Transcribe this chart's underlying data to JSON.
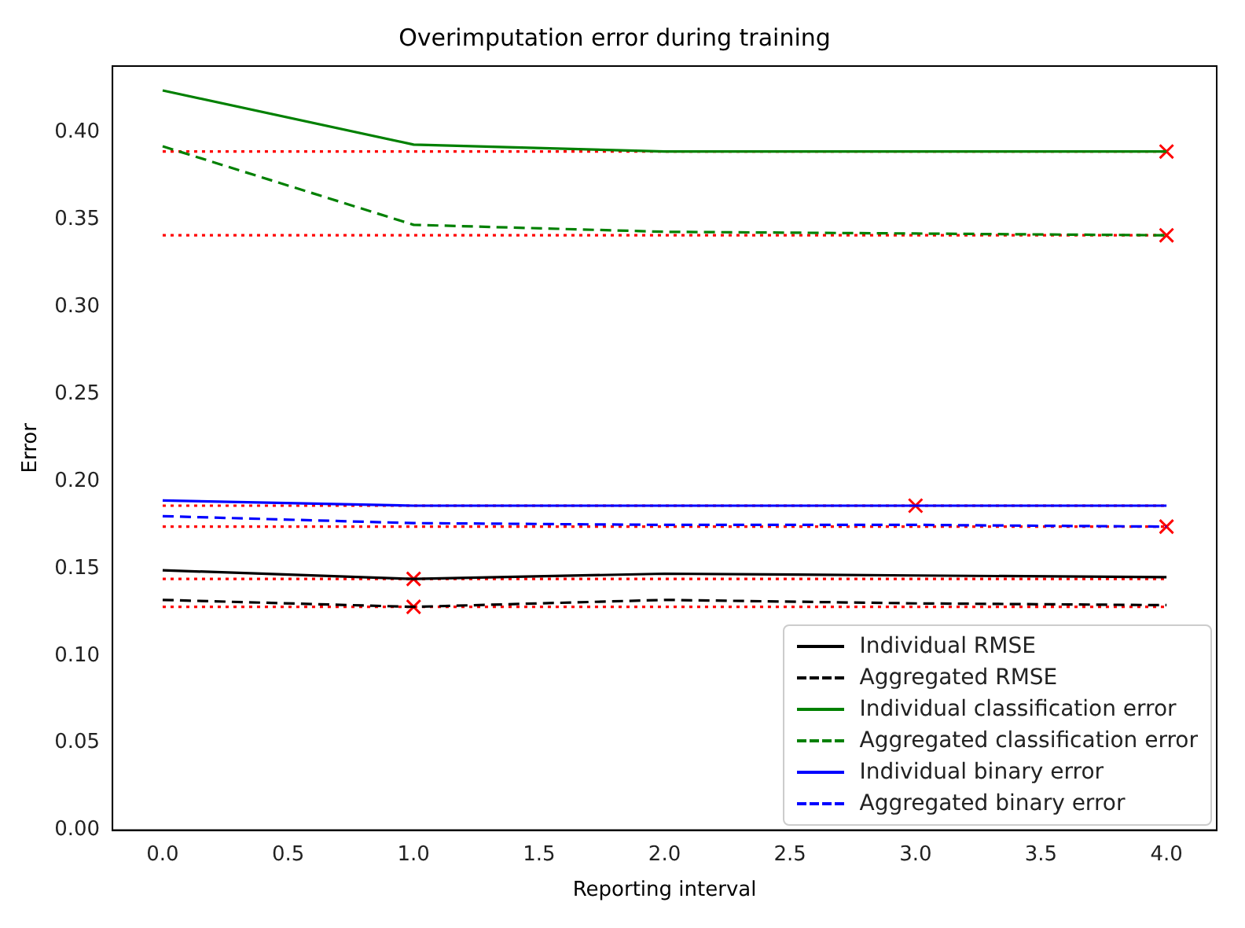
{
  "chart_data": {
    "type": "line",
    "title": "Overimputation error during training",
    "xlabel": "Reporting interval",
    "ylabel": "Error",
    "x": [
      0,
      1,
      2,
      3,
      4
    ],
    "series": [
      {
        "name": "Individual RMSE",
        "color": "#000000",
        "line_style": "solid",
        "values": [
          0.149,
          0.144,
          0.147,
          0.146,
          0.145
        ]
      },
      {
        "name": "Aggregated RMSE",
        "color": "#000000",
        "line_style": "dashed",
        "values": [
          0.132,
          0.128,
          0.132,
          0.13,
          0.129
        ]
      },
      {
        "name": "Individual classification error",
        "color": "#008000",
        "line_style": "solid",
        "values": [
          0.424,
          0.393,
          0.389,
          0.389,
          0.389
        ]
      },
      {
        "name": "Aggregated classification error",
        "color": "#008000",
        "line_style": "dashed",
        "values": [
          0.392,
          0.347,
          0.343,
          0.342,
          0.341
        ]
      },
      {
        "name": "Individual binary error",
        "color": "#0000ff",
        "line_style": "solid",
        "values": [
          0.189,
          0.186,
          0.186,
          0.186,
          0.186
        ]
      },
      {
        "name": "Aggregated binary error",
        "color": "#0000ff",
        "line_style": "dashed",
        "values": [
          0.18,
          0.176,
          0.175,
          0.175,
          0.174
        ]
      },
      {
        "type": "scatter",
        "color": "#ff0000",
        "marker": "cross",
        "x": [
          1,
          1,
          4,
          4,
          3,
          4
        ],
        "values": [
          0.144,
          0.128,
          0.389,
          0.341,
          0.186,
          0.174
        ]
      }
    ],
    "ref_lines": [
      {
        "axis": "y",
        "value": 0.144,
        "color": "#ff0000",
        "line_style": "dotted"
      },
      {
        "axis": "y",
        "value": 0.128,
        "color": "#ff0000",
        "line_style": "dotted"
      },
      {
        "axis": "y",
        "value": 0.389,
        "color": "#ff0000",
        "line_style": "dotted"
      },
      {
        "axis": "y",
        "value": 0.341,
        "color": "#ff0000",
        "line_style": "dotted"
      },
      {
        "axis": "y",
        "value": 0.186,
        "color": "#ff0000",
        "line_style": "dotted"
      },
      {
        "axis": "y",
        "value": 0.174,
        "color": "#ff0000",
        "line_style": "dotted"
      }
    ],
    "xlim": [
      -0.2,
      4.2
    ],
    "ylim": [
      0,
      0.438
    ],
    "xticks": [
      {
        "value": 0,
        "label": "0.0"
      },
      0.5,
      {
        "value": 1,
        "label": "1.0"
      },
      1.5,
      {
        "value": 2,
        "label": "2.0"
      },
      2.5,
      {
        "value": 3,
        "label": "3.0"
      },
      3.5,
      {
        "value": 4,
        "label": "4.0"
      }
    ],
    "yticks": [
      {
        "value": 0,
        "label": "0.00"
      },
      {
        "value": 0.05,
        "label": "0.05"
      },
      {
        "value": 0.1,
        "label": "0.10"
      },
      {
        "value": 0.15,
        "label": "0.15"
      },
      {
        "value": 0.2,
        "label": "0.20"
      },
      {
        "value": 0.25,
        "label": "0.25"
      },
      {
        "value": 0.3,
        "label": "0.30"
      },
      {
        "value": 0.35,
        "label": "0.35"
      },
      {
        "value": 0.4,
        "label": "0.40"
      }
    ],
    "grid": false,
    "legend": "bottom right"
  }
}
